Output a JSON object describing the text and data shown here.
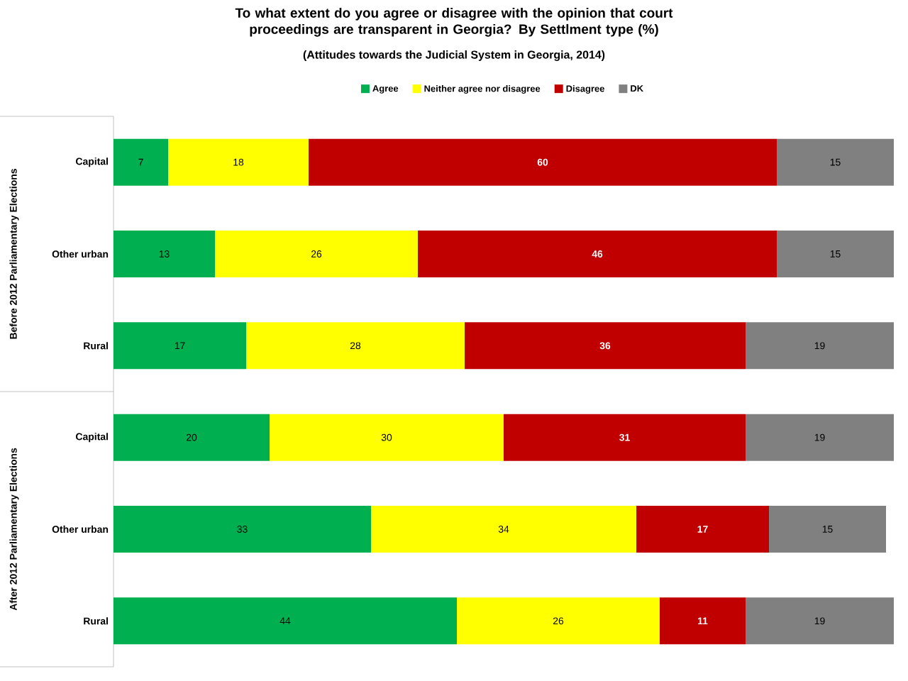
{
  "chart_data": {
    "type": "bar",
    "orientation": "horizontal",
    "stacked": true,
    "title": "To what extent do you agree or disagree with the opinion that court proceedings are transparent in Georgia? By Settlment type (%)",
    "subtitle": "(Attitudes towards the Judicial System in Georgia, 2014)",
    "categories": [
      "Capital",
      "Other urban",
      "Rural",
      "Capital",
      "Other urban",
      "Rural"
    ],
    "series": [
      {
        "name": "Agree",
        "color": "#00b050",
        "values": [
          7,
          13,
          17,
          20,
          33,
          44
        ]
      },
      {
        "name": "Neither agree nor disagree",
        "color": "#ffff00",
        "values": [
          18,
          26,
          28,
          30,
          34,
          26
        ]
      },
      {
        "name": "Disagree",
        "color": "#c00000",
        "values": [
          60,
          46,
          36,
          31,
          17,
          11
        ]
      },
      {
        "name": "DK",
        "color": "#808080",
        "values": [
          15,
          15,
          19,
          19,
          15,
          19
        ]
      }
    ],
    "annotations": [
      "Before 2012 Parliamentary Elections",
      "After 2012 Parliamentary Elections"
    ],
    "tick_labels": "y",
    "data_labels": true,
    "legend": "top"
  }
}
